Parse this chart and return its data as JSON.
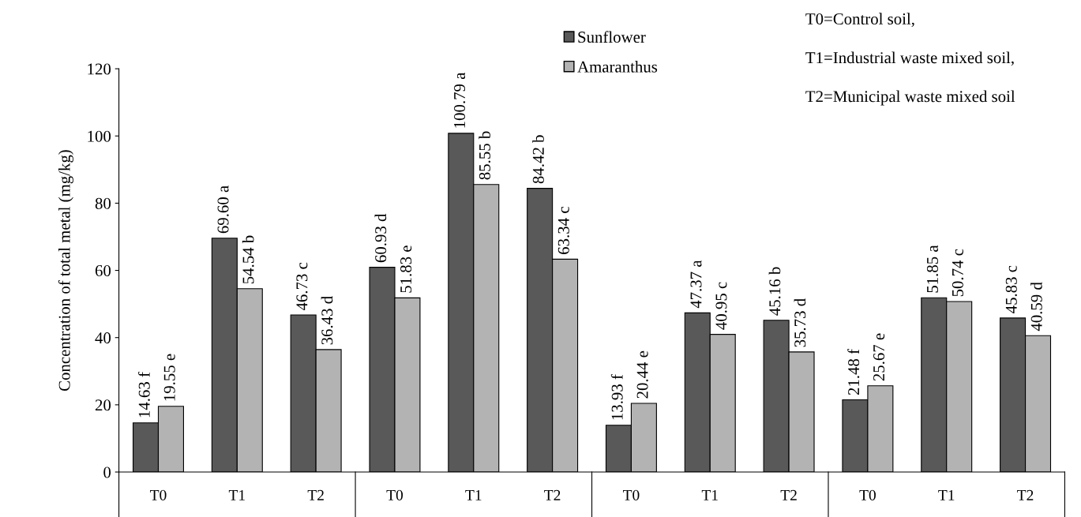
{
  "chart_data": {
    "type": "bar",
    "ylabel": "Concentration of total metal (mg/kg)",
    "categories": [
      "T0",
      "T1",
      "T2",
      "T0",
      "T1",
      "T2",
      "T0",
      "T1",
      "T2",
      "T0",
      "T1",
      "T2"
    ],
    "series": [
      {
        "name": "Sunflower",
        "color": "#595959",
        "values": [
          14.63,
          69.6,
          46.73,
          60.93,
          100.79,
          84.42,
          13.93,
          47.37,
          45.16,
          21.48,
          51.85,
          45.83
        ],
        "value_labels": [
          "14.63 f",
          "69.60 a",
          "46.73 c",
          "60.93 d",
          "100.79 a",
          "84.42 b",
          "13.93 f",
          "47.37 a",
          "45.16 b",
          "21.48 f",
          "51.85 a",
          "45.83 c"
        ]
      },
      {
        "name": "Amaranthus",
        "color": "#b3b3b3",
        "values": [
          19.55,
          54.54,
          36.43,
          51.83,
          85.55,
          63.34,
          20.44,
          40.95,
          35.73,
          25.67,
          50.74,
          40.59
        ],
        "value_labels": [
          "19.55 e",
          "54.54 b",
          "36.43 d",
          "51.83 e",
          "85.55 b",
          "63.34 c",
          "20.44 e",
          "40.95 c",
          "35.73 d",
          "25.67 e",
          "50.74 c",
          "40.59 d"
        ]
      }
    ],
    "ylim": [
      0,
      120
    ],
    "yticks": [
      0,
      20,
      40,
      60,
      80,
      100,
      120
    ],
    "grid": false,
    "legend": "top",
    "annotations": [
      "T0=Control soil,",
      "T1=Industrial waste mixed soil,",
      "T2=Municipal waste mixed soil"
    ]
  }
}
